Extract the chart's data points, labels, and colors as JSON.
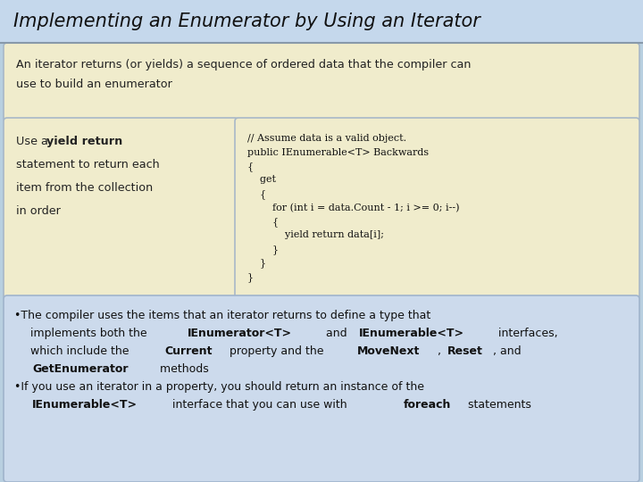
{
  "title": "Implementing an Enumerator by Using an Iterator",
  "intro_text1": "An iterator returns (or yields) a sequence of ordered data that the compiler can",
  "intro_text2": "use to build an enumerator",
  "left_panel_normal1": "Use a ",
  "left_panel_bold1": "yield return",
  "left_panel_normal2": "statement to return each",
  "left_panel_normal3": "item from the collection",
  "left_panel_normal4": "in order",
  "code_lines": [
    "// Assume data is a valid object.",
    "public IEnumerable<T> Backwards",
    "{",
    "    get",
    "    {",
    "        for (int i = data.Count - 1; i >= 0; i--)",
    "        {",
    "            yield return data[i];",
    "        }",
    "    }",
    "}"
  ],
  "bullet1_pre": "•The compiler uses the items that an iterator returns to define a type that",
  "bullet1_line2_pre": "  implements both the ",
  "bullet1_line2_bold1": "IEnumerator<T>",
  "bullet1_line2_mid": " and ",
  "bullet1_line2_bold2": "IEnumerable<T>",
  "bullet1_line2_post": " interfaces,",
  "bullet1_line3_pre": "  which include the ",
  "bullet1_line3_bold1": "Current",
  "bullet1_line3_mid": " property and the ",
  "bullet1_line3_bold2": "MoveNext",
  "bullet1_line3_sep": ", ",
  "bullet1_line3_bold3": "Reset",
  "bullet1_line3_post": ", and",
  "bullet1_line4_pre": "  ",
  "bullet1_line4_bold": "GetEnumerator",
  "bullet1_line4_post": " methods",
  "bullet2_pre": "•If you use an iterator in a property, you should return an instance of the",
  "bullet2_line2_pre": "  ",
  "bullet2_line2_bold1": "IEnumerable<T>",
  "bullet2_line2_mid": " interface that you can use with ",
  "bullet2_line2_bold2": "foreach",
  "bullet2_line2_post": " statements",
  "title_bg": "#c5d8ec",
  "slide_bg": "#b0c8e0",
  "panel_bg": "#f0eccc",
  "panel_border": "#a8b8c8",
  "code_bg": "#f0eccc",
  "bottom_bg": "#ccdaec",
  "bottom_border": "#a0b4cc",
  "text_color": "#222222",
  "title_color": "#111111",
  "code_color": "#111111"
}
